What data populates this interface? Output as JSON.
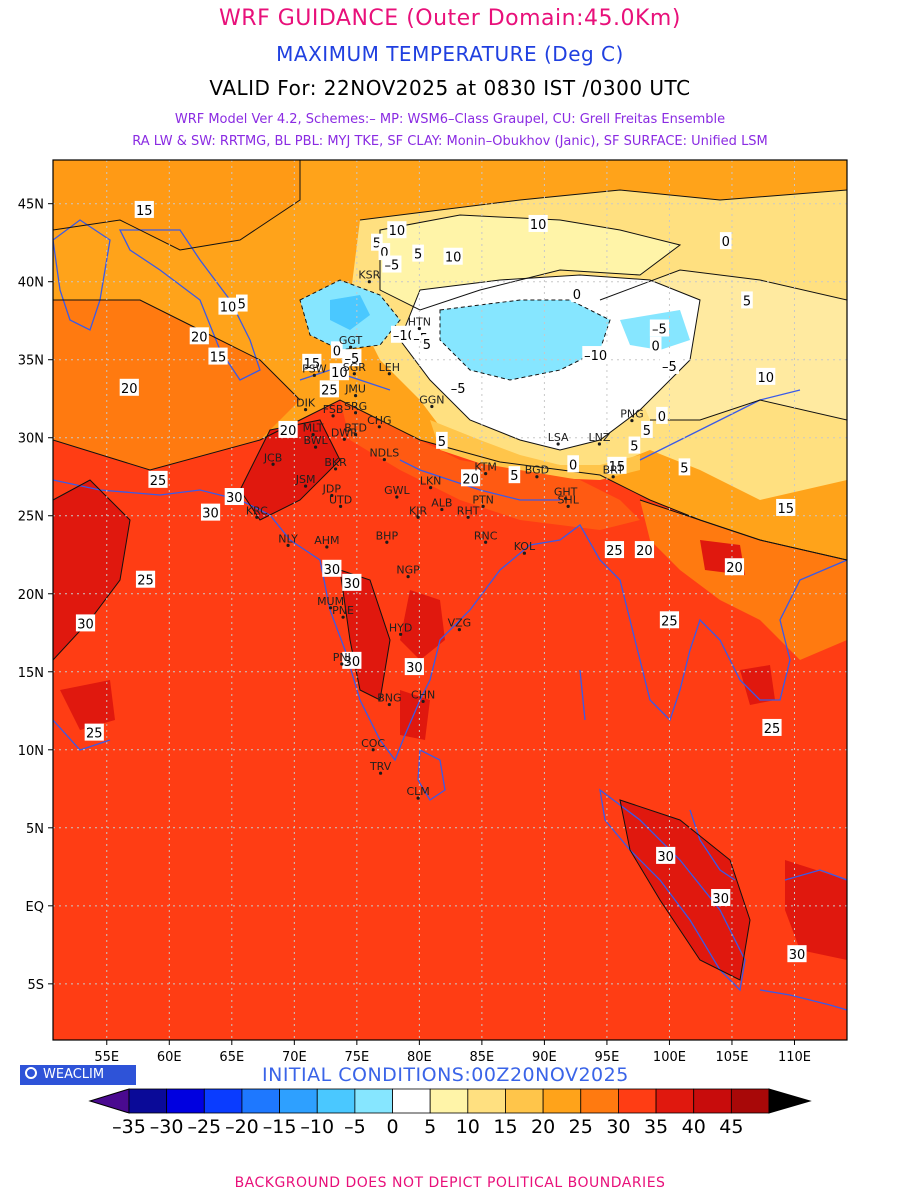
{
  "header": {
    "title": "WRF GUIDANCE (Outer Domain:45.0Km)",
    "subtitle": "MAXIMUM TEMPERATURE (Deg C)",
    "valid": "VALID For: 22NOV2025 at 0830 IST /0300 UTC",
    "model_line1": "WRF Model Ver 4.2, Schemes:– MP: WSM6–Class Graupel, CU: Grell Freitas Ensemble",
    "model_line2": "RA LW & SW: RRTMG, BL PBL: MYJ TKE, SF CLAY: Monin–Obukhov (Janic), SF SURFACE: Unified LSM"
  },
  "map": {
    "lat_labels": [
      "45N",
      "40N",
      "35N",
      "30N",
      "25N",
      "20N",
      "15N",
      "10N",
      "5N",
      "EQ",
      "5S"
    ],
    "lon_labels": [
      "55E",
      "60E",
      "65E",
      "70E",
      "75E",
      "80E",
      "85E",
      "90E",
      "95E",
      "100E",
      "105E",
      "110E"
    ],
    "cities": [
      {
        "label": "KSR",
        "lon": 76,
        "lat": 40
      },
      {
        "label": "HTN",
        "lon": 80,
        "lat": 37
      },
      {
        "label": "GGT",
        "lon": 74.5,
        "lat": 35.8
      },
      {
        "label": "PSW",
        "lon": 71.6,
        "lat": 34
      },
      {
        "label": "SGR",
        "lon": 74.8,
        "lat": 34.1
      },
      {
        "label": "LEH",
        "lon": 77.6,
        "lat": 34.1
      },
      {
        "label": "JMU",
        "lon": 74.9,
        "lat": 32.7
      },
      {
        "label": "DIK",
        "lon": 70.9,
        "lat": 31.8
      },
      {
        "label": "SRG",
        "lon": 74.9,
        "lat": 31.6
      },
      {
        "label": "FSB",
        "lon": 73.1,
        "lat": 31.4
      },
      {
        "label": "GGN",
        "lon": 81,
        "lat": 32
      },
      {
        "label": "MLT",
        "lon": 71.5,
        "lat": 30.2
      },
      {
        "label": "BTD",
        "lon": 74.9,
        "lat": 30.2
      },
      {
        "label": "CHG",
        "lon": 76.8,
        "lat": 30.7
      },
      {
        "label": "BWL",
        "lon": 71.7,
        "lat": 29.4
      },
      {
        "label": "DWR",
        "lon": 74,
        "lat": 29.9
      },
      {
        "label": "NDLS",
        "lon": 77.2,
        "lat": 28.6
      },
      {
        "label": "JCB",
        "lon": 68.3,
        "lat": 28.3
      },
      {
        "label": "BKR",
        "lon": 73.3,
        "lat": 28
      },
      {
        "label": "LSA",
        "lon": 91.1,
        "lat": 29.6
      },
      {
        "label": "LNZ",
        "lon": 94.4,
        "lat": 29.6
      },
      {
        "label": "PNG",
        "lon": 97,
        "lat": 31.1
      },
      {
        "label": "JSM",
        "lon": 70.9,
        "lat": 26.9
      },
      {
        "label": "LKN",
        "lon": 80.9,
        "lat": 26.8
      },
      {
        "label": "KTM",
        "lon": 85.3,
        "lat": 27.7
      },
      {
        "label": "BGD",
        "lon": 89.4,
        "lat": 27.5
      },
      {
        "label": "BRT",
        "lon": 95.5,
        "lat": 27.5
      },
      {
        "label": "JDP",
        "lon": 73,
        "lat": 26.3
      },
      {
        "label": "UTD",
        "lon": 73.7,
        "lat": 25.6
      },
      {
        "label": "GWL",
        "lon": 78.2,
        "lat": 26.2
      },
      {
        "label": "GHT",
        "lon": 91.7,
        "lat": 26.1
      },
      {
        "label": "SHL",
        "lon": 91.9,
        "lat": 25.6
      },
      {
        "label": "ALB",
        "lon": 81.8,
        "lat": 25.4
      },
      {
        "label": "PTN",
        "lon": 85.1,
        "lat": 25.6
      },
      {
        "label": "KJR",
        "lon": 79.9,
        "lat": 24.9
      },
      {
        "label": "RHT",
        "lon": 83.9,
        "lat": 24.9
      },
      {
        "label": "KRC",
        "lon": 67,
        "lat": 24.9
      },
      {
        "label": "AHM",
        "lon": 72.6,
        "lat": 23
      },
      {
        "label": "BHP",
        "lon": 77.4,
        "lat": 23.3
      },
      {
        "label": "RNC",
        "lon": 85.3,
        "lat": 23.3
      },
      {
        "label": "NLY",
        "lon": 69.5,
        "lat": 23.1
      },
      {
        "label": "KOL",
        "lon": 88.4,
        "lat": 22.6
      },
      {
        "label": "NGP",
        "lon": 79.1,
        "lat": 21.1
      },
      {
        "label": "MUM",
        "lon": 72.9,
        "lat": 19.1
      },
      {
        "label": "PNE",
        "lon": 73.9,
        "lat": 18.5
      },
      {
        "label": "HYD",
        "lon": 78.5,
        "lat": 17.4
      },
      {
        "label": "VZG",
        "lon": 83.2,
        "lat": 17.7
      },
      {
        "label": "PNJ",
        "lon": 73.8,
        "lat": 15.5
      },
      {
        "label": "CHN",
        "lon": 80.3,
        "lat": 13.1
      },
      {
        "label": "BNG",
        "lon": 77.6,
        "lat": 12.9
      },
      {
        "label": "COC",
        "lon": 76.3,
        "lat": 10
      },
      {
        "label": "TRV",
        "lon": 76.9,
        "lat": 8.5
      },
      {
        "label": "CLM",
        "lon": 79.9,
        "lat": 6.9
      }
    ],
    "contour_labels": [
      {
        "text": "15",
        "lon": 58,
        "lat": 44.6
      },
      {
        "text": "10",
        "lon": 78.2,
        "lat": 43.3
      },
      {
        "text": "5",
        "lon": 76.6,
        "lat": 42.5
      },
      {
        "text": "0",
        "lon": 77.2,
        "lat": 41.9
      },
      {
        "text": "–5",
        "lon": 77.8,
        "lat": 41.1
      },
      {
        "text": "5",
        "lon": 79.9,
        "lat": 41.8
      },
      {
        "text": "10",
        "lon": 82.7,
        "lat": 41.6
      },
      {
        "text": "10",
        "lon": 89.5,
        "lat": 43.7
      },
      {
        "text": "0",
        "lon": 104.5,
        "lat": 42.6
      },
      {
        "text": "10",
        "lon": 64.7,
        "lat": 38.4
      },
      {
        "text": "5",
        "lon": 65.8,
        "lat": 38.6
      },
      {
        "text": "20",
        "lon": 62.4,
        "lat": 36.5
      },
      {
        "text": "15",
        "lon": 63.9,
        "lat": 35.2
      },
      {
        "text": "0",
        "lon": 92.6,
        "lat": 39.2
      },
      {
        "text": "5",
        "lon": 106.2,
        "lat": 38.8
      },
      {
        "text": "–10",
        "lon": 78.8,
        "lat": 36.6
      },
      {
        "text": "–5",
        "lon": 80.1,
        "lat": 36.4
      },
      {
        "text": "5",
        "lon": 80.6,
        "lat": 36
      },
      {
        "text": "–5",
        "lon": 99.2,
        "lat": 37
      },
      {
        "text": "0",
        "lon": 98.9,
        "lat": 35.9
      },
      {
        "text": "–10",
        "lon": 94.1,
        "lat": 35.3
      },
      {
        "text": "–5",
        "lon": 100,
        "lat": 34.6
      },
      {
        "text": "0",
        "lon": 73.4,
        "lat": 35.6
      },
      {
        "text": "–5",
        "lon": 74.6,
        "lat": 35.1
      },
      {
        "text": "15",
        "lon": 71.4,
        "lat": 34.8
      },
      {
        "text": "10",
        "lon": 73.6,
        "lat": 34.2
      },
      {
        "text": "20",
        "lon": 56.8,
        "lat": 33.2
      },
      {
        "text": "10",
        "lon": 107.7,
        "lat": 33.9
      },
      {
        "text": "–5",
        "lon": 83.1,
        "lat": 33.2
      },
      {
        "text": "25",
        "lon": 72.8,
        "lat": 33.1
      },
      {
        "text": "0",
        "lon": 99.4,
        "lat": 31.4
      },
      {
        "text": "5",
        "lon": 98.2,
        "lat": 30.5
      },
      {
        "text": "20",
        "lon": 69.5,
        "lat": 30.5
      },
      {
        "text": "5",
        "lon": 81.8,
        "lat": 29.8
      },
      {
        "text": "5",
        "lon": 97.2,
        "lat": 29.5
      },
      {
        "text": "5",
        "lon": 101.2,
        "lat": 28.1
      },
      {
        "text": "15",
        "lon": 95.8,
        "lat": 28.2
      },
      {
        "text": "20",
        "lon": 84.1,
        "lat": 27.4
      },
      {
        "text": "5",
        "lon": 87.6,
        "lat": 27.6
      },
      {
        "text": "0",
        "lon": 92.3,
        "lat": 28.3
      },
      {
        "text": "25",
        "lon": 59.1,
        "lat": 27.3
      },
      {
        "text": "30",
        "lon": 65.2,
        "lat": 26.2
      },
      {
        "text": "30",
        "lon": 63.3,
        "lat": 25.2
      },
      {
        "text": "15",
        "lon": 109.3,
        "lat": 25.5
      },
      {
        "text": "25",
        "lon": 95.6,
        "lat": 22.8
      },
      {
        "text": "20",
        "lon": 98,
        "lat": 22.8
      },
      {
        "text": "20",
        "lon": 105.2,
        "lat": 21.7
      },
      {
        "text": "30",
        "lon": 73,
        "lat": 21.6
      },
      {
        "text": "25",
        "lon": 58.1,
        "lat": 20.9
      },
      {
        "text": "30",
        "lon": 74.6,
        "lat": 20.7
      },
      {
        "text": "30",
        "lon": 53.3,
        "lat": 18.1
      },
      {
        "text": "25",
        "lon": 100,
        "lat": 18.3
      },
      {
        "text": "30",
        "lon": 74.6,
        "lat": 15.7
      },
      {
        "text": "30",
        "lon": 79.6,
        "lat": 15.3
      },
      {
        "text": "25",
        "lon": 54,
        "lat": 11.1
      },
      {
        "text": "25",
        "lon": 108.2,
        "lat": 11.4
      },
      {
        "text": "30",
        "lon": 99.7,
        "lat": 3.2
      },
      {
        "text": "30",
        "lon": 104.1,
        "lat": 0.5
      },
      {
        "text": "30",
        "lon": 110.2,
        "lat": -3.1
      }
    ]
  },
  "colorbar": {
    "ticks": [
      "–35",
      "–30",
      "–25",
      "–20",
      "–15",
      "–10",
      "–5",
      "0",
      "5",
      "10",
      "15",
      "20",
      "25",
      "30",
      "35",
      "40",
      "45"
    ],
    "colors": [
      "#0a0a98",
      "#0000e0",
      "#0a3cff",
      "#1e78ff",
      "#2ea0ff",
      "#4ac8ff",
      "#86e6ff",
      "#ffffff",
      "#fff4a8",
      "#ffe080",
      "#ffc54a",
      "#ffa31a",
      "#ff7a10",
      "#ff3d14",
      "#e0180e",
      "#c80c0c",
      "#a80808"
    ],
    "low_color": "#4a0a90",
    "high_color": "#000000"
  },
  "footer": {
    "brand": "WEACLIM",
    "initial_conditions": "INITIAL CONDITIONS:00Z20NOV2025",
    "disclaimer": "BACKGROUND DOES NOT DEPICT POLITICAL BOUNDARIES"
  }
}
